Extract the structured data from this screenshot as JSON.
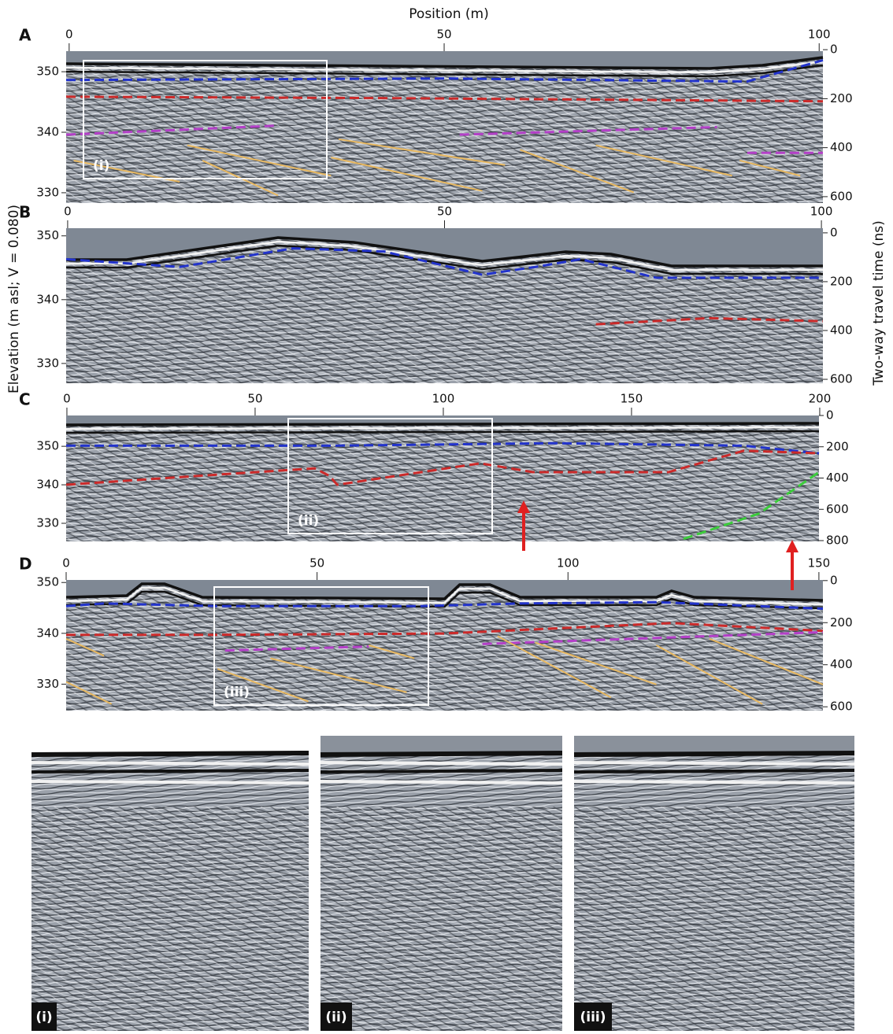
{
  "axis_labels": {
    "x": "Position (m)",
    "y": "Elevation (m asl; V = 0.080)",
    "y2": "Two-way travel time (ns)"
  },
  "panels": [
    {
      "label": "A",
      "xlim": [
        -0.4,
        100.5
      ],
      "xticks": [
        0,
        50,
        100
      ],
      "ylim": [
        328.3,
        353.4
      ],
      "yticks": [
        330,
        340,
        350
      ],
      "y2lim": [
        6,
        626
      ],
      "y2ticks": [
        0,
        200,
        400,
        600
      ],
      "inset_label": "(i)"
    },
    {
      "label": "B",
      "xlim": [
        -0.2,
        100.2
      ],
      "xticks": [
        0,
        50,
        100
      ],
      "ylim": [
        326.9,
        351.2
      ],
      "yticks": [
        330,
        340,
        350
      ],
      "y2lim": [
        -19,
        616
      ],
      "y2ticks": [
        0,
        200,
        400,
        600
      ]
    },
    {
      "label": "C",
      "xlim": [
        -0.2,
        199.8
      ],
      "xticks": [
        0,
        50,
        100,
        150,
        200
      ],
      "ylim": [
        325.3,
        358
      ],
      "yticks": [
        330,
        340,
        350
      ],
      "y2lim": [
        0,
        805
      ],
      "y2ticks": [
        0,
        200,
        400,
        600,
        800
      ],
      "inset_label": "(ii)"
    },
    {
      "label": "D",
      "xlim": [
        0,
        150.8
      ],
      "xticks": [
        0,
        50,
        100,
        150
      ],
      "ylim": [
        324.8,
        350.5
      ],
      "yticks": [
        330,
        340,
        350
      ],
      "y2lim": [
        -3,
        618
      ],
      "y2ticks": [
        0,
        200,
        400,
        600
      ],
      "inset_label": "(iii)"
    }
  ],
  "insets": [
    {
      "label": "(i)"
    },
    {
      "label": "(ii)"
    },
    {
      "label": "(iii)"
    }
  ]
}
